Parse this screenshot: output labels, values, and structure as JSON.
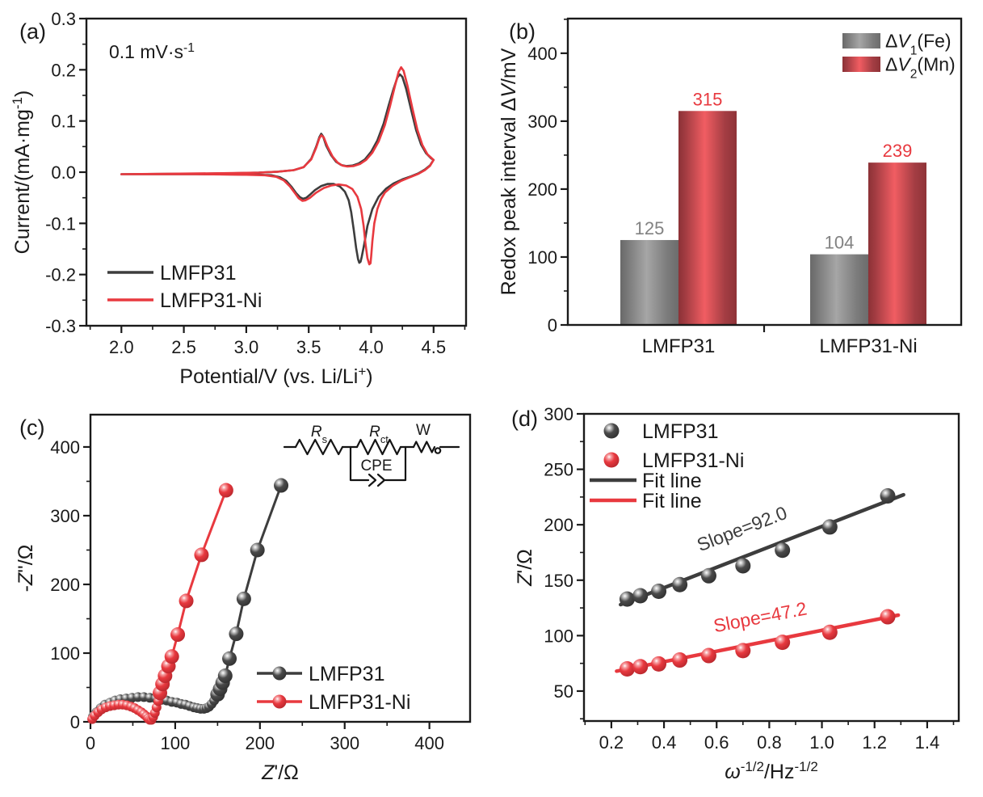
{
  "colors": {
    "axis": "#1a1a1a",
    "series_black": "#3d3d3d",
    "series_red": "#e8393f",
    "gray_bar_edge": "#696969",
    "gray_bar_center": "#a6a6a6",
    "red_bar_edge": "#8c3136",
    "red_bar_center": "#f15d62",
    "gray_value_label": "#828282",
    "red_value_label": "#e8393f"
  },
  "chart_data": [
    {
      "panel": "a",
      "type": "line",
      "tag": "(a)",
      "annotation": "0.1 mV·s^{-1}",
      "xlabel": "Potential/V (vs. Li/Li^{+})",
      "ylabel": "Current/(mA·mg^{-1})",
      "xlim": [
        1.72,
        4.76
      ],
      "ylim": [
        -0.3,
        0.3
      ],
      "xticks": [
        2.0,
        2.5,
        3.0,
        3.5,
        4.0,
        4.5
      ],
      "yticks": [
        -0.3,
        -0.2,
        -0.1,
        0.0,
        0.1,
        0.2,
        0.3
      ],
      "legend": [
        "LMFP31",
        "LMFP31-Ni"
      ],
      "series": [
        {
          "name": "LMFP31",
          "color": "#3d3d3d",
          "points": [
            [
              2.0,
              -0.004
            ],
            [
              2.3,
              -0.0035
            ],
            [
              2.6,
              -0.003
            ],
            [
              2.9,
              -0.002
            ],
            [
              3.1,
              -0.001
            ],
            [
              3.25,
              0.001
            ],
            [
              3.38,
              0.004
            ],
            [
              3.46,
              0.01
            ],
            [
              3.52,
              0.026
            ],
            [
              3.56,
              0.05
            ],
            [
              3.585,
              0.068
            ],
            [
              3.6,
              0.075
            ],
            [
              3.615,
              0.07
            ],
            [
              3.64,
              0.052
            ],
            [
              3.68,
              0.033
            ],
            [
              3.72,
              0.02
            ],
            [
              3.76,
              0.014
            ],
            [
              3.8,
              0.012
            ],
            [
              3.85,
              0.013
            ],
            [
              3.9,
              0.017
            ],
            [
              3.95,
              0.025
            ],
            [
              4.0,
              0.04
            ],
            [
              4.05,
              0.062
            ],
            [
              4.1,
              0.095
            ],
            [
              4.14,
              0.13
            ],
            [
              4.18,
              0.163
            ],
            [
              4.21,
              0.185
            ],
            [
              4.23,
              0.191
            ],
            [
              4.25,
              0.186
            ],
            [
              4.28,
              0.163
            ],
            [
              4.32,
              0.122
            ],
            [
              4.36,
              0.082
            ],
            [
              4.4,
              0.054
            ],
            [
              4.44,
              0.037
            ],
            [
              4.48,
              0.027
            ],
            [
              4.5,
              0.024
            ],
            [
              4.47,
              0.013
            ],
            [
              4.43,
              0.005
            ],
            [
              4.38,
              -0.002
            ],
            [
              4.32,
              -0.008
            ],
            [
              4.25,
              -0.014
            ],
            [
              4.18,
              -0.022
            ],
            [
              4.12,
              -0.032
            ],
            [
              4.06,
              -0.048
            ],
            [
              4.01,
              -0.072
            ],
            [
              3.97,
              -0.105
            ],
            [
              3.945,
              -0.14
            ],
            [
              3.925,
              -0.165
            ],
            [
              3.915,
              -0.175
            ],
            [
              3.905,
              -0.177
            ],
            [
              3.895,
              -0.17
            ],
            [
              3.88,
              -0.148
            ],
            [
              3.86,
              -0.112
            ],
            [
              3.84,
              -0.078
            ],
            [
              3.82,
              -0.055
            ],
            [
              3.79,
              -0.038
            ],
            [
              3.75,
              -0.028
            ],
            [
              3.7,
              -0.023
            ],
            [
              3.65,
              -0.023
            ],
            [
              3.6,
              -0.027
            ],
            [
              3.55,
              -0.035
            ],
            [
              3.51,
              -0.044
            ],
            [
              3.48,
              -0.05
            ],
            [
              3.455,
              -0.052
            ],
            [
              3.43,
              -0.049
            ],
            [
              3.4,
              -0.041
            ],
            [
              3.36,
              -0.028
            ],
            [
              3.32,
              -0.017
            ],
            [
              3.27,
              -0.01
            ],
            [
              3.2,
              -0.006
            ],
            [
              3.1,
              -0.005
            ],
            [
              2.9,
              -0.0045
            ],
            [
              2.6,
              -0.004
            ],
            [
              2.3,
              -0.004
            ],
            [
              2.0,
              -0.004
            ]
          ]
        },
        {
          "name": "LMFP31-Ni",
          "color": "#e8393f",
          "points": [
            [
              2.0,
              -0.004
            ],
            [
              2.4,
              -0.003
            ],
            [
              2.8,
              -0.002
            ],
            [
              3.1,
              -0.001
            ],
            [
              3.25,
              0.001
            ],
            [
              3.38,
              0.004
            ],
            [
              3.46,
              0.01
            ],
            [
              3.52,
              0.025
            ],
            [
              3.56,
              0.048
            ],
            [
              3.585,
              0.066
            ],
            [
              3.6,
              0.072
            ],
            [
              3.62,
              0.068
            ],
            [
              3.65,
              0.05
            ],
            [
              3.69,
              0.031
            ],
            [
              3.73,
              0.019
            ],
            [
              3.77,
              0.013
            ],
            [
              3.81,
              0.011
            ],
            [
              3.86,
              0.012
            ],
            [
              3.91,
              0.016
            ],
            [
              3.96,
              0.024
            ],
            [
              4.01,
              0.038
            ],
            [
              4.06,
              0.06
            ],
            [
              4.11,
              0.092
            ],
            [
              4.15,
              0.128
            ],
            [
              4.19,
              0.168
            ],
            [
              4.22,
              0.196
            ],
            [
              4.24,
              0.205
            ],
            [
              4.26,
              0.198
            ],
            [
              4.29,
              0.17
            ],
            [
              4.33,
              0.125
            ],
            [
              4.37,
              0.083
            ],
            [
              4.41,
              0.053
            ],
            [
              4.45,
              0.035
            ],
            [
              4.49,
              0.026
            ],
            [
              4.5,
              0.024
            ],
            [
              4.47,
              0.012
            ],
            [
              4.43,
              0.004
            ],
            [
              4.38,
              -0.003
            ],
            [
              4.31,
              -0.01
            ],
            [
              4.24,
              -0.017
            ],
            [
              4.17,
              -0.027
            ],
            [
              4.11,
              -0.04
            ],
            [
              4.08,
              -0.052
            ],
            [
              4.05,
              -0.072
            ],
            [
              4.025,
              -0.1
            ],
            [
              4.01,
              -0.135
            ],
            [
              4.0,
              -0.165
            ],
            [
              3.995,
              -0.178
            ],
            [
              3.985,
              -0.18
            ],
            [
              3.97,
              -0.168
            ],
            [
              3.955,
              -0.14
            ],
            [
              3.94,
              -0.105
            ],
            [
              3.92,
              -0.072
            ],
            [
              3.89,
              -0.048
            ],
            [
              3.85,
              -0.033
            ],
            [
              3.8,
              -0.026
            ],
            [
              3.74,
              -0.024
            ],
            [
              3.68,
              -0.026
            ],
            [
              3.62,
              -0.031
            ],
            [
              3.56,
              -0.04
            ],
            [
              3.51,
              -0.05
            ],
            [
              3.475,
              -0.055
            ],
            [
              3.45,
              -0.056
            ],
            [
              3.42,
              -0.051
            ],
            [
              3.39,
              -0.041
            ],
            [
              3.35,
              -0.028
            ],
            [
              3.3,
              -0.016
            ],
            [
              3.24,
              -0.009
            ],
            [
              3.15,
              -0.006
            ],
            [
              3.0,
              -0.005
            ],
            [
              2.6,
              -0.004
            ],
            [
              2.0,
              -0.004
            ]
          ]
        }
      ]
    },
    {
      "panel": "b",
      "type": "bar",
      "tag": "(b)",
      "ylabel": "Redox peak interval Δ~{V}/mV",
      "ylim": [
        0,
        451
      ],
      "yticks": [
        0,
        100,
        200,
        300,
        400
      ],
      "categories": [
        "LMFP31",
        "LMFP31-Ni"
      ],
      "series": [
        {
          "name": "Δ~{V}_{1}(Fe)",
          "color_key": "gray",
          "values": [
            125,
            104
          ]
        },
        {
          "name": "Δ~{V}_{2}(Mn)",
          "color_key": "red",
          "values": [
            315,
            239
          ]
        }
      ]
    },
    {
      "panel": "c",
      "type": "scatter-line",
      "tag": "(c)",
      "xlabel": "~{Z}'/Ω",
      "ylabel": "-~{Z}''/Ω",
      "xlim": [
        0,
        448
      ],
      "ylim": [
        0,
        447
      ],
      "xticks": [
        0,
        100,
        200,
        300,
        400
      ],
      "yticks": [
        0,
        100,
        200,
        300,
        400
      ],
      "legend": [
        "LMFP31",
        "LMFP31-Ni"
      ],
      "series": [
        {
          "name": "LMFP31",
          "color": "#3d3d3d",
          "arc_points": [
            [
              3,
              8
            ],
            [
              7,
              14
            ],
            [
              12,
              20
            ],
            [
              17,
              25
            ],
            [
              23,
              28
            ],
            [
              29,
              31
            ],
            [
              35,
              33
            ],
            [
              42,
              34
            ],
            [
              49,
              35
            ],
            [
              56,
              36
            ],
            [
              63,
              36
            ],
            [
              70,
              35
            ],
            [
              77,
              34
            ],
            [
              84,
              32
            ],
            [
              90,
              31
            ],
            [
              96,
              29
            ],
            [
              102,
              28
            ],
            [
              107,
              26
            ],
            [
              112,
              25
            ],
            [
              117,
              23
            ],
            [
              122,
              21
            ],
            [
              126,
              20
            ],
            [
              130,
              19
            ],
            [
              134,
              19
            ],
            [
              137,
              20
            ],
            [
              140,
              22
            ],
            [
              143,
              26
            ],
            [
              146,
              31
            ]
          ],
          "tail_points": [
            [
              150,
              40
            ],
            [
              153,
              48
            ],
            [
              156,
              57
            ],
            [
              159,
              67
            ],
            [
              164,
              92
            ],
            [
              172,
              128
            ],
            [
              181,
              179
            ],
            [
              197,
              250
            ],
            [
              225,
              344
            ]
          ]
        },
        {
          "name": "LMFP31-Ni",
          "color": "#e8393f",
          "arc_points": [
            [
              2,
              4
            ],
            [
              5,
              9
            ],
            [
              9,
              14
            ],
            [
              13,
              18
            ],
            [
              18,
              21
            ],
            [
              23,
              23
            ],
            [
              28,
              24
            ],
            [
              33,
              25
            ],
            [
              38,
              25
            ],
            [
              43,
              24
            ],
            [
              48,
              22
            ],
            [
              52,
              20
            ],
            [
              56,
              17
            ],
            [
              60,
              14
            ],
            [
              63,
              11
            ],
            [
              66,
              8
            ],
            [
              68,
              5
            ],
            [
              70,
              3
            ],
            [
              72,
              3
            ],
            [
              74,
              7
            ],
            [
              76,
              13
            ],
            [
              78,
              21
            ],
            [
              80,
              30
            ]
          ],
          "tail_points": [
            [
              82,
              42
            ],
            [
              85,
              55
            ],
            [
              88,
              67
            ],
            [
              92,
              81
            ],
            [
              96,
              95
            ],
            [
              103,
              127
            ],
            [
              113,
              176
            ],
            [
              131,
              243
            ],
            [
              160,
              337
            ]
          ]
        }
      ],
      "inset_circuit": {
        "rs": "~{R}_{s}",
        "rct": "~{R}_{ct}",
        "w": "W",
        "cpe": "CPE"
      }
    },
    {
      "panel": "d",
      "type": "scatter-fit",
      "tag": "(d)",
      "xlabel": "~{ω}^{-1/2}/Hz^{-1/2}",
      "ylabel": "~{Z}'/Ω",
      "xlim": [
        0.096,
        1.52
      ],
      "ylim": [
        23,
        300
      ],
      "xticks": [
        0.2,
        0.4,
        0.6,
        0.8,
        1.0,
        1.2,
        1.4
      ],
      "yticks": [
        50,
        100,
        150,
        200,
        250,
        300
      ],
      "x": [
        0.26,
        0.31,
        0.38,
        0.46,
        0.57,
        0.7,
        0.85,
        1.03,
        1.25
      ],
      "legend": [
        "LMFP31",
        "LMFP31-Ni",
        "Fit line",
        "Fit line"
      ],
      "series": [
        {
          "name": "LMFP31",
          "color": "#3d3d3d",
          "y": [
            133,
            136,
            140,
            146,
            154,
            163,
            177,
            198,
            226
          ],
          "fit": [
            [
              0.235,
              128
            ],
            [
              1.31,
              227
            ]
          ],
          "slope_label": "Slope=92.0",
          "slope_pos": [
            0.705,
            191
          ],
          "slope_angle": -21
        },
        {
          "name": "LMFP31-Ni",
          "color": "#e8393f",
          "y": [
            70,
            72,
            74.5,
            78,
            82,
            86.5,
            94,
            103,
            117
          ],
          "fit": [
            [
              0.22,
              68
            ],
            [
              1.29,
              118.5
            ]
          ],
          "slope_label": "Slope=47.2",
          "slope_pos": [
            0.77,
            111
          ],
          "slope_angle": -11
        }
      ]
    }
  ]
}
